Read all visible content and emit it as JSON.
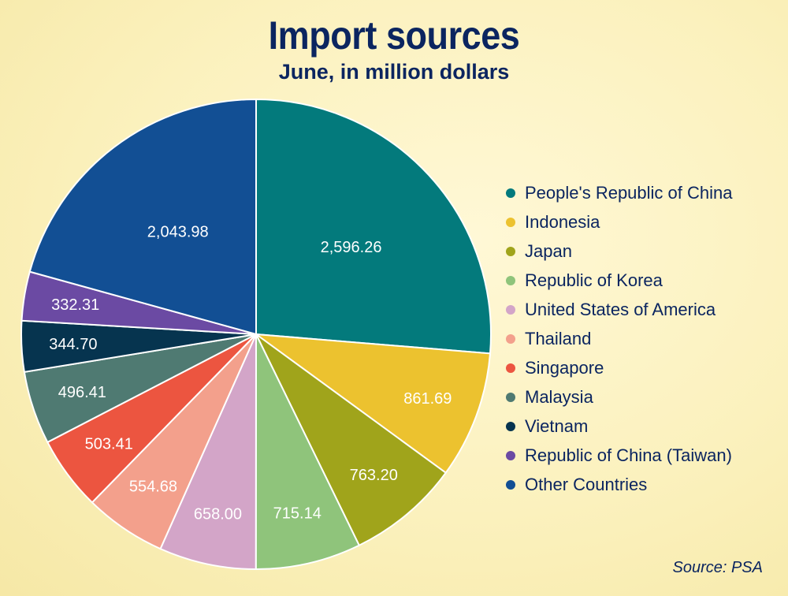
{
  "title": "Import sources",
  "subtitle": "June, in million dollars",
  "source": "Source: PSA",
  "chart_data": {
    "type": "pie",
    "title": "Import sources",
    "subtitle": "June, in million dollars",
    "slices": [
      {
        "label": "People's Republic of China",
        "value": 2596.26,
        "display": "2,596.26",
        "color": "#037a7c"
      },
      {
        "label": "Indonesia",
        "value": 861.69,
        "display": "861.69",
        "color": "#ecc22f"
      },
      {
        "label": "Japan",
        "value": 763.2,
        "display": "763.20",
        "color": "#a0a41b"
      },
      {
        "label": "Republic of Korea",
        "value": 715.14,
        "display": "715.14",
        "color": "#8fc47b"
      },
      {
        "label": "United States of America",
        "value": 658.0,
        "display": "658.00",
        "color": "#d3a5c8"
      },
      {
        "label": "Thailand",
        "value": 554.68,
        "display": "554.68",
        "color": "#f3a08c"
      },
      {
        "label": "Singapore",
        "value": 503.41,
        "display": "503.41",
        "color": "#ec5540"
      },
      {
        "label": "Malaysia",
        "value": 496.41,
        "display": "496.41",
        "color": "#4f7a72"
      },
      {
        "label": "Vietnam",
        "value": 344.7,
        "display": "344.70",
        "color": "#06344f"
      },
      {
        "label": "Republic of China (Taiwan)",
        "value": 332.31,
        "display": "332.31",
        "color": "#6b4aa3"
      },
      {
        "label": "Other Countries",
        "value": 2043.98,
        "display": "2,043.98",
        "color": "#124f94"
      }
    ],
    "legend_position": "right"
  }
}
